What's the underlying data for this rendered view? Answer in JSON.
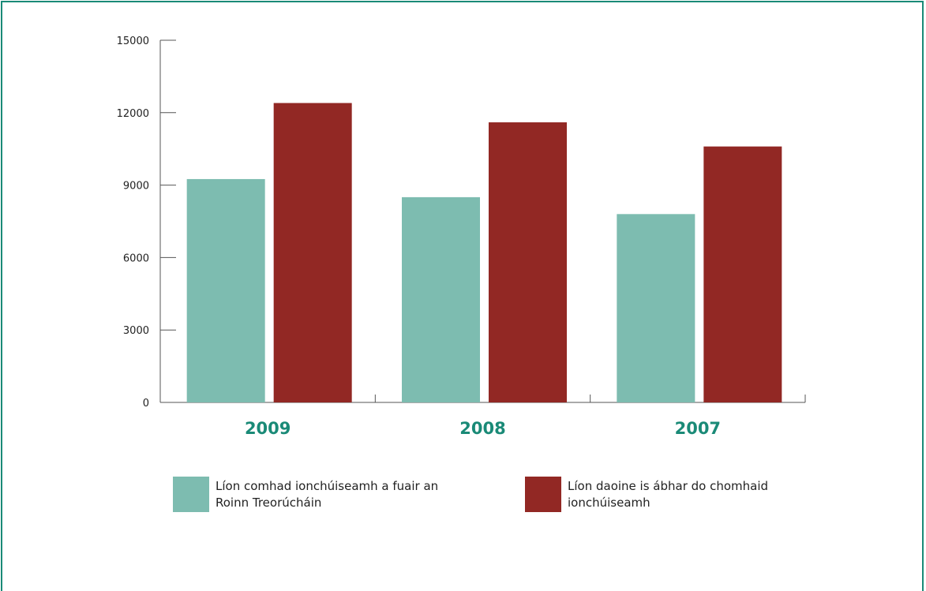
{
  "chart_data": {
    "type": "bar",
    "title": "",
    "xlabel": "",
    "ylabel": "",
    "categories": [
      "2009",
      "2008",
      "2007"
    ],
    "series": [
      {
        "name": "Líon comhad ionchúiseamh a fuair an Roinn Treorúcháin",
        "values": [
          9250,
          8500,
          7800
        ],
        "color": "#7dbcb0"
      },
      {
        "name": "Líon daoine is ábhar do chomhaid ionchúiseamh",
        "values": [
          12400,
          11600,
          10600
        ],
        "color": "#922824"
      }
    ],
    "ylim": [
      0,
      15000
    ],
    "yticks": [
      "0",
      "3000",
      "6000",
      "9000",
      "12000",
      "15000"
    ],
    "grid": false,
    "legend_position": "bottom",
    "legend": [
      {
        "lines": [
          "Líon comhad ionchúiseamh a fuair an",
          "Roinn Treorúcháin"
        ]
      },
      {
        "lines": [
          "Líon daoine is ábhar do chomhaid",
          "ionchúiseamh"
        ]
      }
    ],
    "frame_color": "#1a8a77",
    "category_label_color": "#1a8a77"
  }
}
